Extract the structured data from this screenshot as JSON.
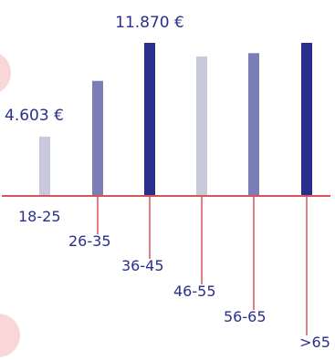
{
  "chart_data": {
    "type": "bar",
    "categories": [
      "18-25",
      "26-35",
      "36-45",
      "46-55",
      "56-65",
      ">65"
    ],
    "values": [
      4603,
      8920,
      11870,
      10810,
      11070,
      11870
    ],
    "data_labels": [
      "4.603 €",
      "",
      "11.870 €",
      "",
      "",
      ""
    ],
    "ylim": [
      0,
      11870
    ],
    "colors": [
      "#c8c9dd",
      "#7a7eb5",
      "#2b2f8c",
      "#c8c9dd",
      "#7a7eb5",
      "#2b2f8c"
    ],
    "text_color": "#2b2f8c",
    "axis_color": "#d9545a",
    "grid": false,
    "legend": "none"
  },
  "decor": {
    "blob_color": "#f9d6d8"
  }
}
